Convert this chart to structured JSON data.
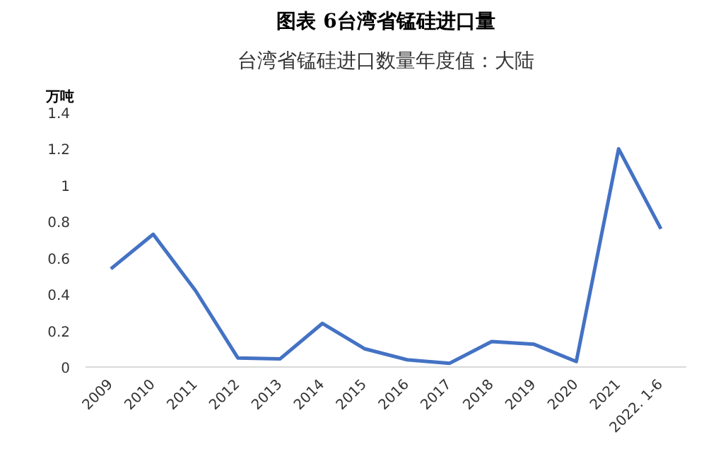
{
  "chart_data": {
    "type": "line",
    "title": "图表 6台湾省锰硅进口量",
    "subtitle": "台湾省锰硅进口数量年度值：大陆",
    "ylabel": "万吨",
    "categories": [
      "2009",
      "2010",
      "2011",
      "2012",
      "2013",
      "2014",
      "2015",
      "2016",
      "2017",
      "2018",
      "2019",
      "2020",
      "2021",
      "2022. 1-6"
    ],
    "series": [
      {
        "color": "#4472c4",
        "values": [
          0.54,
          0.73,
          0.42,
          0.05,
          0.045,
          0.24,
          0.1,
          0.04,
          0.02,
          0.14,
          0.125,
          0.03,
          1.2,
          0.76
        ]
      }
    ],
    "ylim": [
      0,
      1.4
    ],
    "yticks": [
      0,
      0.2,
      0.4,
      0.6,
      0.8,
      1,
      1.2,
      1.4
    ],
    "grid": false,
    "marker": "none",
    "line_style": "solid"
  }
}
